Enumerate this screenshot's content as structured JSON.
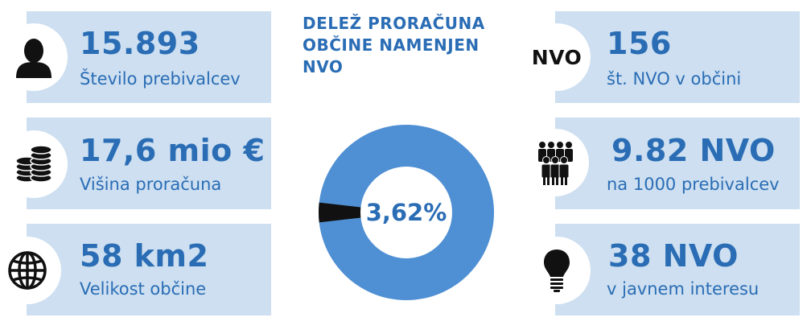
{
  "colors": {
    "accent": "#2a6db5",
    "card_bg": "#cddff0",
    "donut_main": "#4f8fd3",
    "donut_slice": "#111111"
  },
  "left_stats": [
    {
      "value": "15.893",
      "label": "Število prebivalcev",
      "icon": "person-icon"
    },
    {
      "value": "17,6 mio €",
      "label": "Višina proračuna",
      "icon": "coins-icon"
    },
    {
      "value": "58 km2",
      "label": "Velikost občine",
      "icon": "globe-icon"
    }
  ],
  "right_stats": [
    {
      "value": "156",
      "label": "št. NVO v občini",
      "icon": "nvo-badge",
      "icon_text": "NVO"
    },
    {
      "value": "9.82 NVO",
      "label": "na 1000 prebivalcev",
      "icon": "people-group-icon"
    },
    {
      "value": "38 NVO",
      "label": "v javnem interesu",
      "icon": "lightbulb-icon"
    }
  ],
  "center": {
    "title": "DELEŽ PRORAČUNA OBČINE NAMENJEN NVO",
    "percent_label": "3,62%"
  },
  "chart_data": {
    "type": "pie",
    "title": "DELEŽ PRORAČUNA OBČINE NAMENJEN NVO",
    "slices": [
      {
        "label": "3,62%",
        "value": 3.62,
        "color": "#111111"
      },
      {
        "value": 96.38,
        "color": "#4f8fd3"
      }
    ],
    "donut": true
  }
}
